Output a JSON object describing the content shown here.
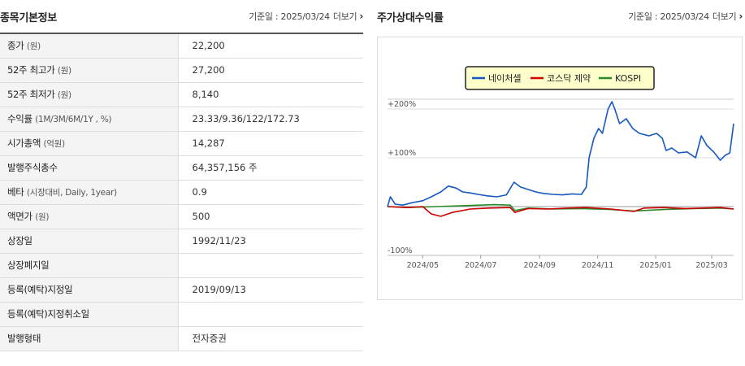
{
  "info": {
    "title": "종목기본정보",
    "date_label": "기준일 : 2025/03/24",
    "more_label": "더보기",
    "rows": [
      {
        "key": "종가",
        "unit": "(원)",
        "value": "22,200"
      },
      {
        "key": "52주 최고가",
        "unit": "(원)",
        "value": "27,200"
      },
      {
        "key": "52주 최저가",
        "unit": "(원)",
        "value": "8,140"
      },
      {
        "key": "수익률",
        "unit": "(1M/3M/6M/1Y , %)",
        "value": "23.33/9.36/122/172.73"
      },
      {
        "key": "시가총액",
        "unit": "(억원)",
        "value": "14,287"
      },
      {
        "key": "발행주식총수",
        "unit": "",
        "value": "64,357,156 주"
      },
      {
        "key": "베타",
        "unit": "(시장대비, Daily, 1year)",
        "value": "0.9"
      },
      {
        "key": "액면가",
        "unit": "(원)",
        "value": "500"
      },
      {
        "key": "상장일",
        "unit": "",
        "value": "1992/11/23"
      },
      {
        "key": "상장폐지일",
        "unit": "",
        "value": ""
      },
      {
        "key": "등록(예탁)지정일",
        "unit": "",
        "value": "2019/09/13"
      },
      {
        "key": "등록(예탁)지정취소일",
        "unit": "",
        "value": ""
      },
      {
        "key": "발행형태",
        "unit": "",
        "value": "전자증권"
      }
    ]
  },
  "chart_section": {
    "title": "주가상대수익률",
    "date_label": "기준일 : 2025/03/24",
    "more_label": "더보기"
  },
  "chart_data": {
    "type": "line",
    "ylim": [
      -100,
      300
    ],
    "yticks": [
      {
        "value": 200,
        "label": "+200%"
      },
      {
        "value": 100,
        "label": "+100%"
      },
      {
        "value": -100,
        "label": "-100%"
      }
    ],
    "xlim": [
      "2024-03-25",
      "2025-03-24"
    ],
    "xticks": [
      {
        "date": "2024-05-01",
        "label": "2024/05"
      },
      {
        "date": "2024-07-01",
        "label": "2024/07"
      },
      {
        "date": "2024-09-01",
        "label": "2024/09"
      },
      {
        "date": "2024-11-01",
        "label": "2024/11"
      },
      {
        "date": "2025-01-01",
        "label": "2025/01"
      },
      {
        "date": "2025-03-01",
        "label": "2025/03"
      }
    ],
    "legend_position": "top-center",
    "series": [
      {
        "name": "네이처셀",
        "color": "#1558c0",
        "points": [
          [
            "2024-03-25",
            0
          ],
          [
            "2024-03-28",
            20
          ],
          [
            "2024-04-02",
            5
          ],
          [
            "2024-04-10",
            3
          ],
          [
            "2024-04-20",
            8
          ],
          [
            "2024-05-01",
            12
          ],
          [
            "2024-05-10",
            20
          ],
          [
            "2024-05-20",
            30
          ],
          [
            "2024-05-28",
            42
          ],
          [
            "2024-06-05",
            38
          ],
          [
            "2024-06-12",
            30
          ],
          [
            "2024-06-20",
            28
          ],
          [
            "2024-06-28",
            25
          ],
          [
            "2024-07-08",
            22
          ],
          [
            "2024-07-18",
            20
          ],
          [
            "2024-07-28",
            24
          ],
          [
            "2024-08-05",
            50
          ],
          [
            "2024-08-12",
            40
          ],
          [
            "2024-08-20",
            35
          ],
          [
            "2024-08-28",
            30
          ],
          [
            "2024-09-05",
            27
          ],
          [
            "2024-09-15",
            25
          ],
          [
            "2024-09-25",
            24
          ],
          [
            "2024-10-05",
            26
          ],
          [
            "2024-10-15",
            25
          ],
          [
            "2024-10-20",
            40
          ],
          [
            "2024-10-23",
            100
          ],
          [
            "2024-10-28",
            140
          ],
          [
            "2024-11-02",
            160
          ],
          [
            "2024-11-06",
            150
          ],
          [
            "2024-11-12",
            200
          ],
          [
            "2024-11-16",
            215
          ],
          [
            "2024-11-19",
            200
          ],
          [
            "2024-11-24",
            170
          ],
          [
            "2024-12-01",
            180
          ],
          [
            "2024-12-08",
            160
          ],
          [
            "2024-12-15",
            150
          ],
          [
            "2024-12-25",
            145
          ],
          [
            "2025-01-02",
            150
          ],
          [
            "2025-01-08",
            140
          ],
          [
            "2025-01-12",
            115
          ],
          [
            "2025-01-18",
            120
          ],
          [
            "2025-01-25",
            110
          ],
          [
            "2025-02-03",
            112
          ],
          [
            "2025-02-12",
            100
          ],
          [
            "2025-02-18",
            145
          ],
          [
            "2025-02-24",
            125
          ],
          [
            "2025-03-03",
            112
          ],
          [
            "2025-03-10",
            95
          ],
          [
            "2025-03-15",
            105
          ],
          [
            "2025-03-20",
            110
          ],
          [
            "2025-03-24",
            170
          ]
        ]
      },
      {
        "name": "코스닥 제약",
        "color": "#cc0000",
        "points": [
          [
            "2024-03-25",
            0
          ],
          [
            "2024-04-15",
            -2
          ],
          [
            "2024-05-01",
            0
          ],
          [
            "2024-05-10",
            -15
          ],
          [
            "2024-05-20",
            -20
          ],
          [
            "2024-06-01",
            -12
          ],
          [
            "2024-06-20",
            -5
          ],
          [
            "2024-07-10",
            -3
          ],
          [
            "2024-08-01",
            -2
          ],
          [
            "2024-08-06",
            -12
          ],
          [
            "2024-08-20",
            -4
          ],
          [
            "2024-09-10",
            -5
          ],
          [
            "2024-10-01",
            -3
          ],
          [
            "2024-10-20",
            -2
          ],
          [
            "2024-11-15",
            -5
          ],
          [
            "2024-12-09",
            -10
          ],
          [
            "2024-12-20",
            -3
          ],
          [
            "2025-01-10",
            -2
          ],
          [
            "2025-02-01",
            -4
          ],
          [
            "2025-02-20",
            -3
          ],
          [
            "2025-03-10",
            -2
          ],
          [
            "2025-03-24",
            -5
          ]
        ]
      },
      {
        "name": "KOSPI",
        "color": "#2a8a2a",
        "points": [
          [
            "2024-03-25",
            0
          ],
          [
            "2024-04-15",
            -2
          ],
          [
            "2024-05-15",
            0
          ],
          [
            "2024-06-15",
            2
          ],
          [
            "2024-07-15",
            4
          ],
          [
            "2024-08-01",
            3
          ],
          [
            "2024-08-06",
            -8
          ],
          [
            "2024-08-20",
            -3
          ],
          [
            "2024-09-15",
            -5
          ],
          [
            "2024-10-15",
            -4
          ],
          [
            "2024-11-15",
            -6
          ],
          [
            "2024-12-09",
            -9
          ],
          [
            "2025-01-10",
            -6
          ],
          [
            "2025-02-10",
            -4
          ],
          [
            "2025-03-10",
            -3
          ],
          [
            "2025-03-24",
            -5
          ]
        ]
      }
    ]
  }
}
